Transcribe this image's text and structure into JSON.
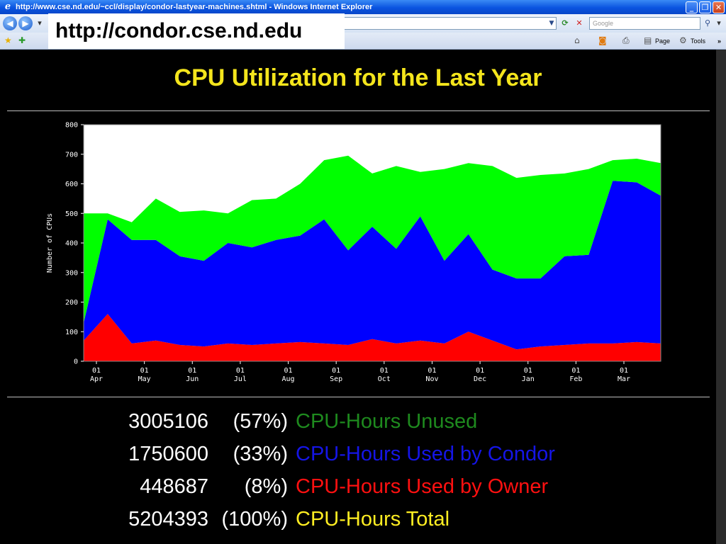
{
  "browser": {
    "title": "http://www.cse.nd.edu/~ccl/display/condor-lastyear-machines.shtml - Windows Internet Explorer",
    "search_placeholder": "Google",
    "toolbar": {
      "page_label": "Page",
      "tools_label": "Tools"
    },
    "url_overlay": "http://condor.cse.nd.edu"
  },
  "page": {
    "title": "CPU Utilization for the Last Year"
  },
  "colors": {
    "unused": "#00ff00",
    "condor": "#0000ff",
    "owner": "#ff0000",
    "title": "#f4e51c",
    "unused_label": "#1e8a1e",
    "condor_label": "#1515e6",
    "owner_label": "#ff1010",
    "total_label": "#ffee22"
  },
  "stats": [
    {
      "value": "3005106",
      "percent": "(57%)",
      "label": "CPU-Hours Unused"
    },
    {
      "value": "1750600",
      "percent": "(33%)",
      "label": "CPU-Hours Used by Condor"
    },
    {
      "value": "448687",
      "percent": "(8%)",
      "label": "CPU-Hours Used by Owner"
    },
    {
      "value": "5204393",
      "percent": "(100%)",
      "label": "CPU-Hours Total"
    }
  ],
  "chart_data": {
    "type": "area",
    "stacked": true,
    "ylabel": "Number of CPUs",
    "ylim": [
      0,
      800
    ],
    "yticks": [
      "800",
      "700",
      "600",
      "500",
      "400",
      "300",
      "200",
      "100",
      "0"
    ],
    "xtick_labels": [
      [
        "01",
        "Apr"
      ],
      [
        "01",
        "May"
      ],
      [
        "01",
        "Jun"
      ],
      [
        "01",
        "Jul"
      ],
      [
        "01",
        "Aug"
      ],
      [
        "01",
        "Sep"
      ],
      [
        "01",
        "Oct"
      ],
      [
        "01",
        "Nov"
      ],
      [
        "01",
        "Dec"
      ],
      [
        "01",
        "Jan"
      ],
      [
        "01",
        "Feb"
      ],
      [
        "01",
        "Mar"
      ]
    ],
    "x": [
      "Apr 01",
      "Apr 15",
      "May 01",
      "May 15",
      "Jun 01",
      "Jun 15",
      "Jul 01",
      "Jul 15",
      "Aug 01",
      "Aug 15",
      "Sep 01",
      "Sep 15",
      "Oct 01",
      "Oct 15",
      "Nov 01",
      "Nov 15",
      "Dec 01",
      "Dec 15",
      "Jan 01",
      "Jan 15",
      "Feb 01",
      "Feb 15",
      "Mar 01",
      "Mar 15",
      "Mar 25"
    ],
    "series": [
      {
        "name": "Used by Owner",
        "values": [
          70,
          160,
          60,
          70,
          55,
          50,
          60,
          55,
          60,
          65,
          60,
          55,
          75,
          60,
          70,
          60,
          100,
          70,
          40,
          50,
          55,
          60,
          60,
          65,
          60
        ]
      },
      {
        "name": "Used by Condor",
        "values": [
          60,
          320,
          350,
          340,
          300,
          290,
          340,
          330,
          350,
          360,
          420,
          320,
          380,
          320,
          420,
          280,
          330,
          240,
          240,
          230,
          300,
          300,
          550,
          540,
          500
        ]
      },
      {
        "name": "Unused",
        "values": [
          370,
          20,
          60,
          140,
          150,
          170,
          100,
          160,
          140,
          175,
          200,
          320,
          180,
          280,
          150,
          310,
          240,
          350,
          340,
          350,
          280,
          290,
          70,
          80,
          110
        ]
      }
    ]
  }
}
